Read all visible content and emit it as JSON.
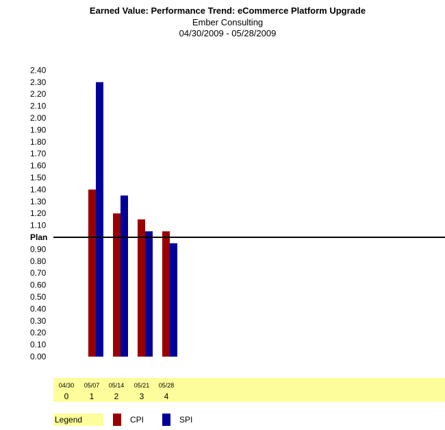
{
  "chart_data": {
    "type": "bar",
    "title": "Earned Value: Performance Trend: eCommerce Platform Upgrade",
    "subtitle": "Ember Consulting",
    "date_range": "04/30/2009 - 05/28/2009",
    "categories": [
      "0",
      "1",
      "2",
      "3",
      "4"
    ],
    "x_dates": [
      "04/30",
      "05/07",
      "05/14",
      "05/21",
      "05/28"
    ],
    "series": [
      {
        "name": "CPI",
        "color": "#990000",
        "values": [
          null,
          1.4,
          1.2,
          1.15,
          1.05
        ]
      },
      {
        "name": "SPI",
        "color": "#000099",
        "values": [
          null,
          2.3,
          1.35,
          1.05,
          0.95
        ]
      }
    ],
    "ylim": [
      0,
      2.4
    ],
    "y_ticks": [
      "0.00",
      "0.10",
      "0.20",
      "0.30",
      "0.40",
      "0.50",
      "0.60",
      "0.70",
      "0.80",
      "0.90",
      "Plan",
      "1.10",
      "1.20",
      "1.30",
      "1.40",
      "1.50",
      "1.60",
      "1.70",
      "1.80",
      "1.90",
      "2.00",
      "2.10",
      "2.20",
      "2.30",
      "2.40"
    ],
    "reference_line": {
      "label": "Plan",
      "value": 1.0
    },
    "legend_label": "Legend",
    "legend_placement": "bottom-left",
    "grid": false
  }
}
